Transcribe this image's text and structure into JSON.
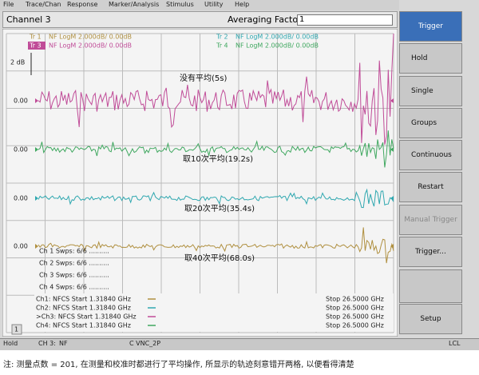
{
  "menu": [
    "File",
    "Trace/Chan",
    "Response",
    "Marker/Analysis",
    "Stimulus",
    "Utility",
    "Help"
  ],
  "channel_title": "Channel 3",
  "averaging_factor": {
    "label": "Averaging Factor",
    "value": "1"
  },
  "traces": [
    {
      "id": "Tr 1",
      "text": "NF LogM 2.000dB/  0.00dB"
    },
    {
      "id": "Tr 2",
      "text": "NF LogM 2.000dB/  0.00dB"
    },
    {
      "id": "Tr 3",
      "text": "NF LogM 2.000dB/  0.00dB"
    },
    {
      "id": "Tr 4",
      "text": "NF LogM 2.000dB/  0.00dB"
    }
  ],
  "scale_label": "2 dB",
  "reference_labels": [
    "0.00",
    "0.00",
    "0.00",
    "0.00"
  ],
  "annotations": [
    "没有平均(5s)",
    "取10次平均(19.2s)",
    "取20次平均(35.4s)",
    "取40次平均(68.0s)"
  ],
  "sweeps": [
    "Ch 1  Swps: 6/6 ..........",
    "Ch 2  Swps: 6/6 ..........",
    "Ch 3  Swps: 6/6 ..........",
    "Ch 4  Swps: 6/6 .........."
  ],
  "channels": [
    {
      "start": "Ch1: NFCS Start  1.31840 GHz",
      "stop": "Stop  26.5000 GHz"
    },
    {
      "start": "Ch2: NFCS Start  1.31840 GHz",
      "stop": "Stop  26.5000 GHz"
    },
    {
      "start": ">Ch3: NFCS Start  1.31840 GHz",
      "stop": "Stop  26.5000 GHz"
    },
    {
      "start": "Ch4: NFCS Start  1.31840 GHz",
      "stop": "Stop  26.5000 GHz"
    }
  ],
  "window_number": "1",
  "buttons": [
    "Trigger",
    "Hold",
    "Single",
    "Groups",
    "Continuous",
    "Restart",
    "Manual Trigger",
    "Trigger...",
    "Setup"
  ],
  "status": [
    "Hold",
    "CH 3:",
    "NF",
    "C VNC_2P",
    "LCL"
  ],
  "caption": "注: 测量点数 = 201, 在测量和校准时都进行了平均操作, 所显示的轨迹刻意错开两格, 以便看得清楚"
}
